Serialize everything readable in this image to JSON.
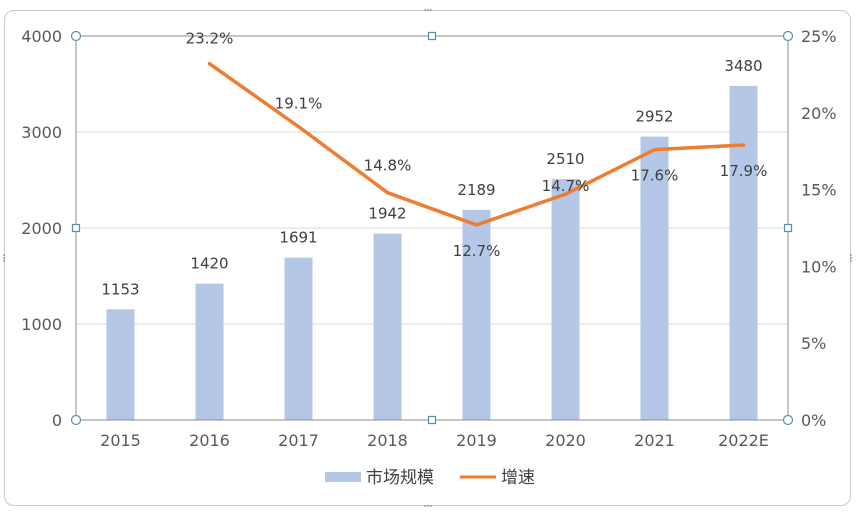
{
  "chart_data": {
    "type": "bar",
    "categories": [
      "2015",
      "2016",
      "2017",
      "2018",
      "2019",
      "2020",
      "2021",
      "2022E"
    ],
    "series": [
      {
        "name": "市场规模",
        "type": "bar",
        "axis": "left",
        "values": [
          1153,
          1420,
          1691,
          1942,
          2189,
          2510,
          2952,
          3480
        ],
        "labels": [
          "1153",
          "1420",
          "1691",
          "1942",
          "2189",
          "2510",
          "2952",
          "3480"
        ],
        "color": "#b4c7e7"
      },
      {
        "name": "增速",
        "type": "line",
        "axis": "right",
        "values": [
          null,
          23.2,
          19.1,
          14.8,
          12.7,
          14.7,
          17.6,
          17.9
        ],
        "labels": [
          "",
          "23.2%",
          "19.1%",
          "14.8%",
          "12.7%",
          "14.7%",
          "17.6%",
          "17.9%"
        ],
        "color": "#ed7d31"
      }
    ],
    "y_left": {
      "lim": [
        0,
        4000
      ],
      "ticks": [
        "0",
        "1000",
        "2000",
        "3000",
        "4000"
      ]
    },
    "y_right": {
      "lim": [
        0,
        25
      ],
      "ticks": [
        "0%",
        "5%",
        "10%",
        "15%",
        "20%",
        "25%"
      ]
    },
    "grid": true,
    "legend": "bottom"
  }
}
